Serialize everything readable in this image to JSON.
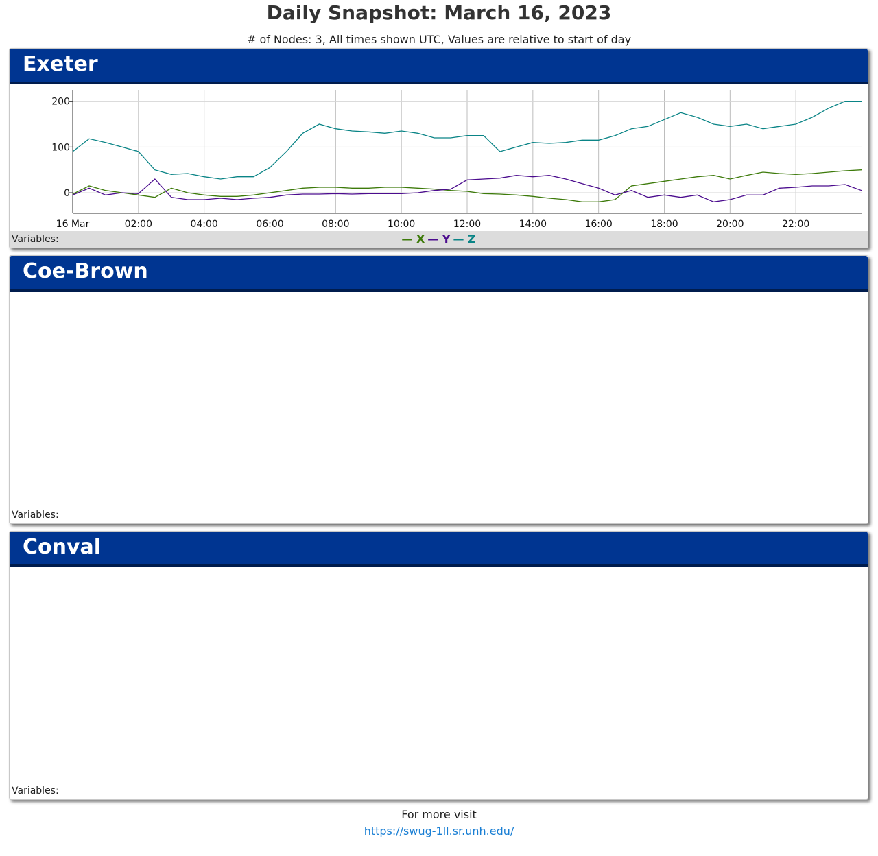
{
  "page": {
    "title": "Daily Snapshot: March 16, 2023",
    "subtitle": "# of Nodes: 3, All times shown UTC, Values are relative to start of day"
  },
  "panels": [
    {
      "name": "Exeter",
      "variables_label": "Variables:"
    },
    {
      "name": "Coe-Brown",
      "variables_label": "Variables:"
    },
    {
      "name": "Conval",
      "variables_label": "Variables:"
    }
  ],
  "footer": {
    "text": "For more visit",
    "link": "https://swug-1ll.sr.unh.edu/"
  },
  "chart_data": {
    "type": "line",
    "title": "",
    "xlabel": "",
    "ylabel": "",
    "x_range": [
      "2023-03-16 00:00",
      "2023-03-16 24:00"
    ],
    "ylim": [
      -45,
      225
    ],
    "y_ticks": [
      0,
      100,
      200
    ],
    "x_tick_labels": [
      "16 Mar",
      "02:00",
      "04:00",
      "06:00",
      "08:00",
      "10:00",
      "12:00",
      "14:00",
      "16:00",
      "18:00",
      "20:00",
      "22:00"
    ],
    "grid": true,
    "legend_position": "bottom-center",
    "x": [
      "00:00",
      "00:30",
      "01:00",
      "01:30",
      "02:00",
      "02:30",
      "03:00",
      "03:30",
      "04:00",
      "04:30",
      "05:00",
      "05:30",
      "06:00",
      "06:30",
      "07:00",
      "07:30",
      "08:00",
      "08:30",
      "09:00",
      "09:30",
      "10:00",
      "10:30",
      "11:00",
      "11:30",
      "12:00",
      "12:30",
      "13:00",
      "13:30",
      "14:00",
      "14:30",
      "15:00",
      "15:30",
      "16:00",
      "16:30",
      "17:00",
      "17:30",
      "18:00",
      "18:30",
      "19:00",
      "19:30",
      "20:00",
      "20:30",
      "21:00",
      "21:30",
      "22:00",
      "22:30",
      "23:00",
      "23:30",
      "24:00"
    ],
    "series": [
      {
        "name": "X",
        "color": "#3d7a0a",
        "values": [
          -3,
          15,
          5,
          0,
          -5,
          -10,
          10,
          0,
          -5,
          -8,
          -8,
          -5,
          0,
          5,
          10,
          12,
          12,
          10,
          10,
          12,
          12,
          10,
          8,
          5,
          3,
          -2,
          -3,
          -5,
          -8,
          -12,
          -15,
          -20,
          -20,
          -15,
          15,
          20,
          25,
          30,
          35,
          38,
          30,
          38,
          45,
          42,
          40,
          42,
          45,
          48,
          50
        ]
      },
      {
        "name": "Y",
        "color": "#4b0c8e",
        "values": [
          -5,
          10,
          -5,
          0,
          -2,
          30,
          -10,
          -15,
          -15,
          -12,
          -15,
          -12,
          -10,
          -5,
          -3,
          -3,
          -2,
          -3,
          -2,
          -2,
          -2,
          0,
          5,
          8,
          28,
          30,
          32,
          38,
          35,
          38,
          30,
          20,
          10,
          -5,
          5,
          -10,
          -5,
          -10,
          -5,
          -20,
          -15,
          -5,
          -5,
          10,
          12,
          15,
          15,
          18,
          5
        ]
      },
      {
        "name": "Z",
        "color": "#0a8486",
        "values": [
          90,
          118,
          110,
          100,
          90,
          50,
          40,
          42,
          35,
          30,
          35,
          35,
          55,
          90,
          130,
          150,
          140,
          135,
          133,
          130,
          135,
          130,
          120,
          120,
          125,
          125,
          90,
          100,
          110,
          108,
          110,
          115,
          115,
          125,
          140,
          145,
          160,
          175,
          165,
          150,
          145,
          150,
          140,
          145,
          150,
          165,
          185,
          200,
          200
        ]
      }
    ]
  }
}
